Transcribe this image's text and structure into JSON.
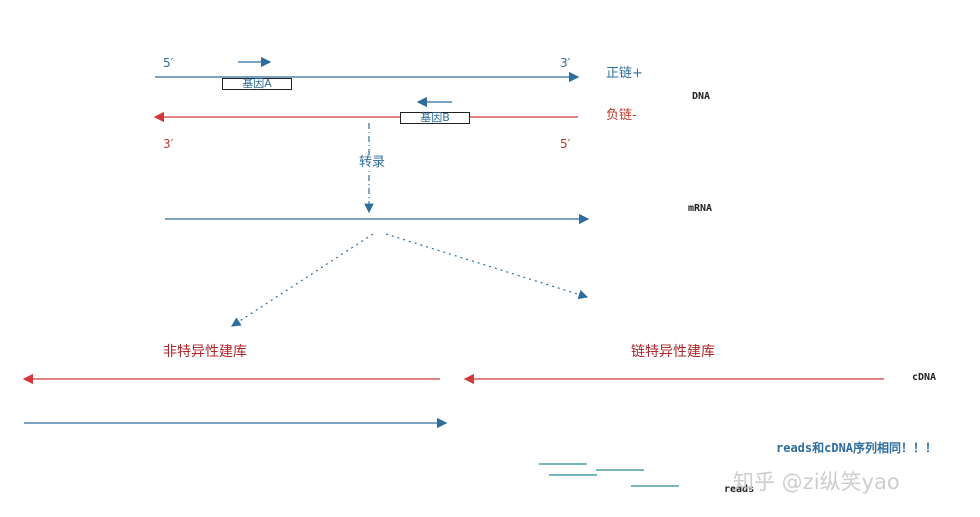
{
  "labels": {
    "five_prime_top": "5′",
    "three_prime_top": "3′",
    "plus_strand": "正链+",
    "minus_strand": "负链-",
    "three_prime_bottom": "3′",
    "five_prime_bottom": "5′",
    "dna": "DNA",
    "gene_a": "基因A",
    "gene_b": "基因B",
    "transcription": "转录",
    "mrna": "mRNA",
    "non_specific": "非特异性建库",
    "strand_specific": "链特异性建库",
    "cdna": "cDNA",
    "reads_note": "reads和cDNA序列相同！！！",
    "reads": "reads",
    "watermark": "知乎 @zi纵笑yao"
  },
  "colors": {
    "plus_strand": "#2e6e9e",
    "minus_strand": "#d23a3a",
    "library_label": "#b0262a",
    "reads": "#2a8a9a"
  }
}
